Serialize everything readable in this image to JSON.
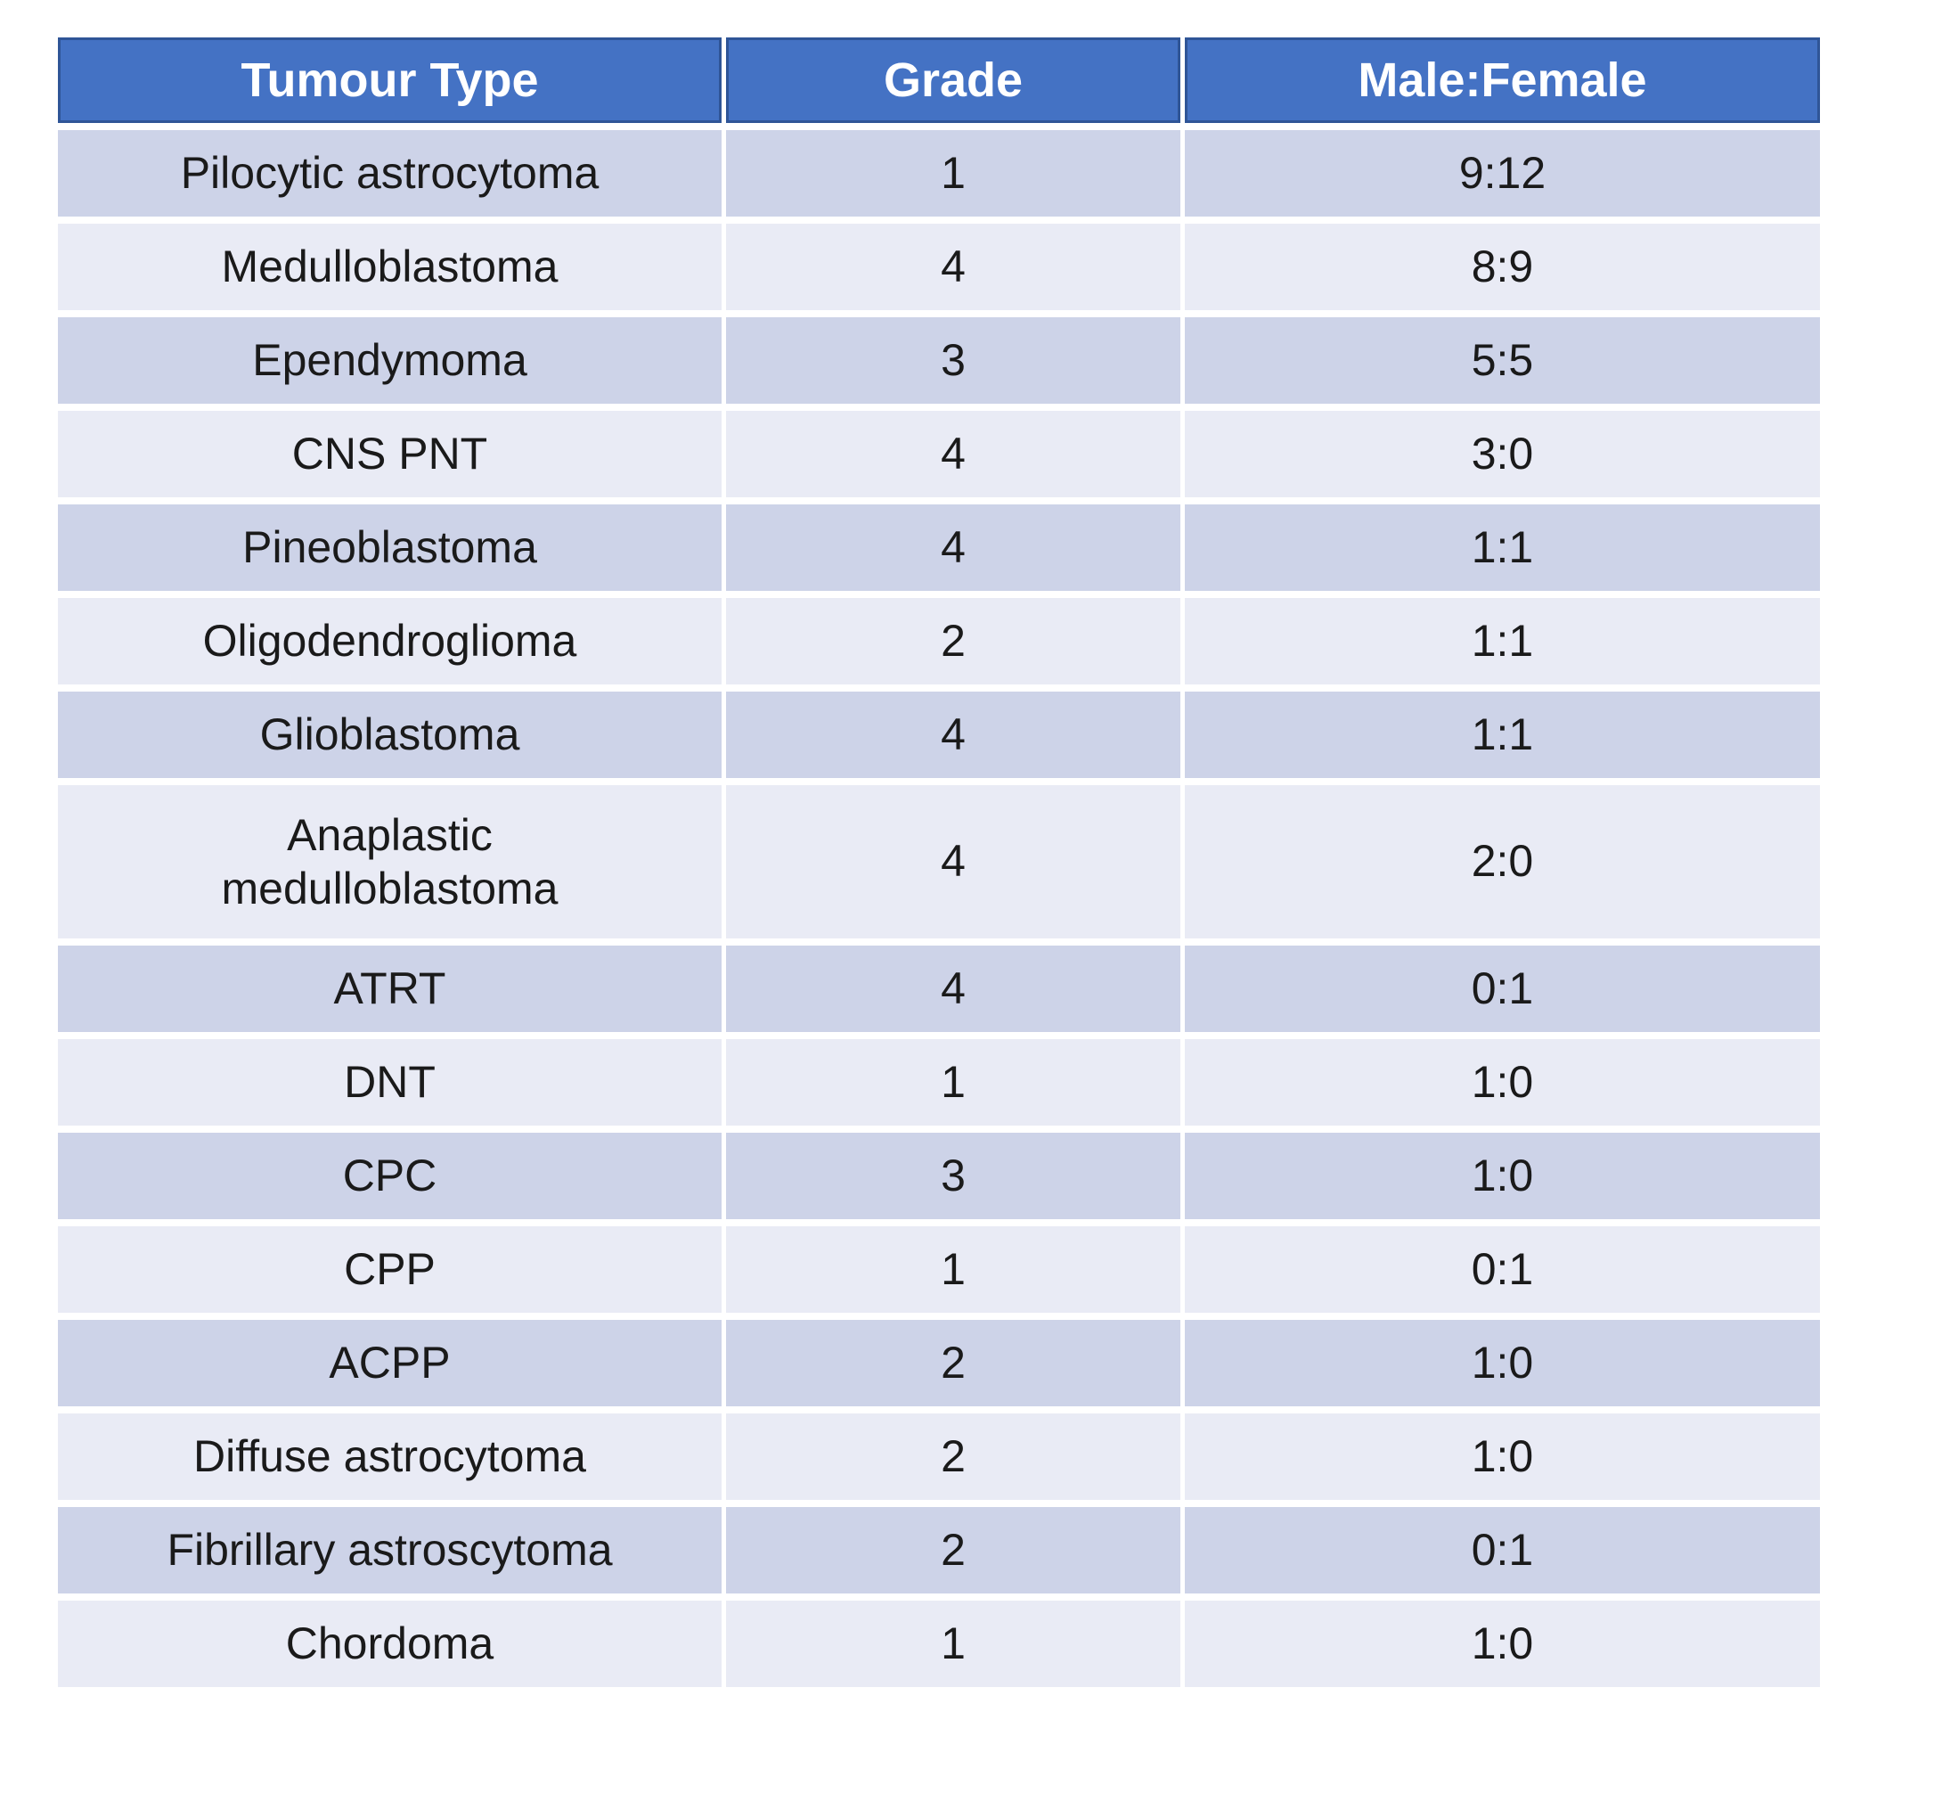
{
  "colors": {
    "header_bg": "#4472C4",
    "header_border": "#2F5597",
    "header_text": "#FFFFFF",
    "band_dark": "#CDD3E8",
    "band_light": "#E9EBF5",
    "body_text": "#1A1A1A",
    "page_bg": "#FFFFFF"
  },
  "table": {
    "columns": [
      "Tumour Type",
      "Grade",
      "Male:Female"
    ],
    "rows": [
      [
        "Pilocytic astrocytoma",
        "1",
        "9:12"
      ],
      [
        "Medulloblastoma",
        "4",
        "8:9"
      ],
      [
        "Ependymoma",
        "3",
        "5:5"
      ],
      [
        "CNS PNT",
        "4",
        "3:0"
      ],
      [
        "Pineoblastoma",
        "4",
        "1:1"
      ],
      [
        "Oligodendroglioma",
        "2",
        "1:1"
      ],
      [
        "Glioblastoma",
        "4",
        "1:1"
      ],
      [
        "Anaplastic medulloblastoma",
        "4",
        "2:0"
      ],
      [
        "ATRT",
        "4",
        "0:1"
      ],
      [
        "DNT",
        "1",
        "1:0"
      ],
      [
        "CPC",
        "3",
        "1:0"
      ],
      [
        "CPP",
        "1",
        "0:1"
      ],
      [
        "ACPP",
        "2",
        "1:0"
      ],
      [
        "Diffuse astrocytoma",
        "2",
        "1:0"
      ],
      [
        "Fibrillary astroscytoma",
        "2",
        "0:1"
      ],
      [
        "Chordoma",
        "1",
        "1:0"
      ]
    ]
  }
}
